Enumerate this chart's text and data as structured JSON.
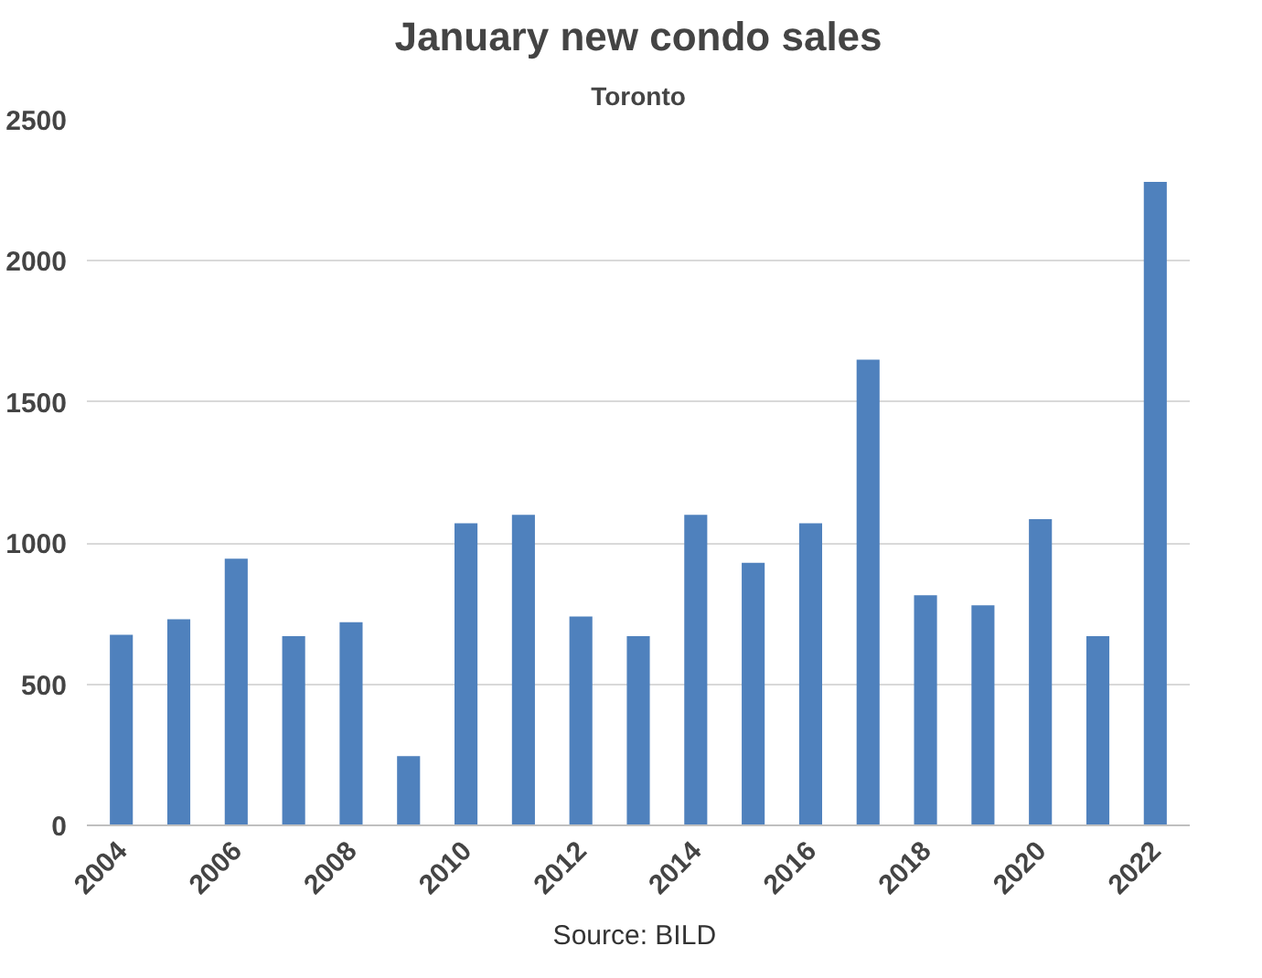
{
  "chart_data": {
    "type": "bar",
    "title": "January new condo sales",
    "subtitle": "Toronto",
    "x": [
      2004,
      2005,
      2006,
      2007,
      2008,
      2009,
      2010,
      2011,
      2012,
      2013,
      2014,
      2015,
      2016,
      2017,
      2018,
      2019,
      2020,
      2021,
      2022
    ],
    "values": [
      675,
      730,
      945,
      670,
      720,
      245,
      1070,
      1100,
      740,
      670,
      1100,
      930,
      1070,
      1650,
      815,
      780,
      1085,
      670,
      2280
    ],
    "color": "#4f81bd",
    "xlim": [
      2003.4,
      2022.6
    ],
    "xticks": [
      2004,
      2006,
      2008,
      2010,
      2012,
      2014,
      2016,
      2018,
      2020,
      2022
    ],
    "ylim": [
      0,
      2500
    ],
    "yticks": [
      0,
      500,
      1000,
      1500,
      2000,
      2500
    ],
    "grid": "y",
    "annotations": [
      "Source:  BILD"
    ]
  }
}
